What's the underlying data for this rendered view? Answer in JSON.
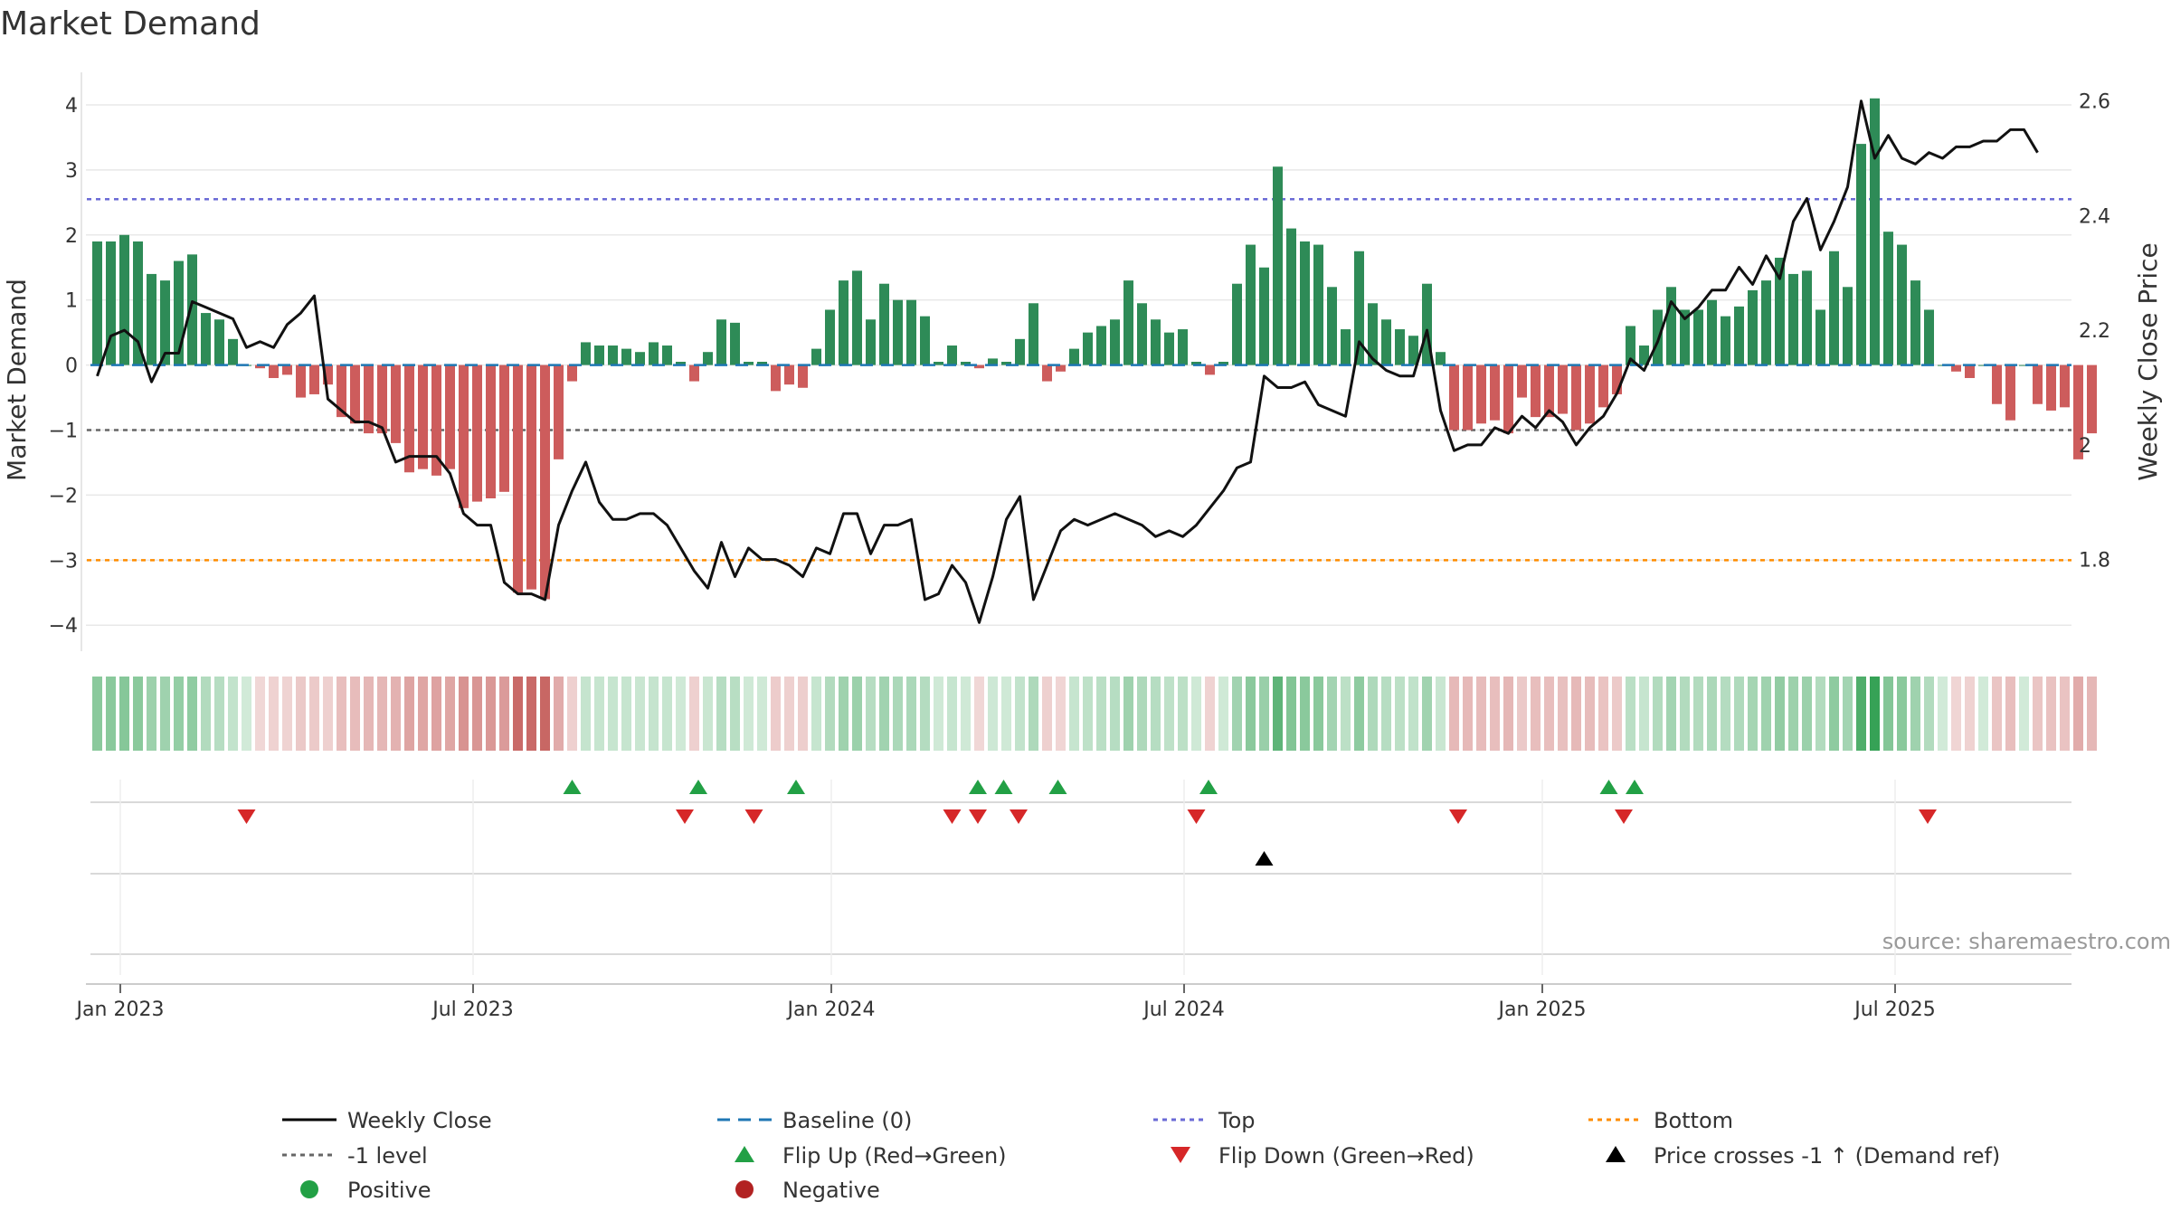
{
  "chart_data": {
    "type": "bar+line",
    "title": "Market Demand",
    "ylabel_left": "Market Demand",
    "ylabel_right": "Weekly Close Price",
    "ylim_left": [
      -4.4,
      4.5
    ],
    "ylim_right": [
      1.64,
      2.65
    ],
    "left_ticks": [
      4,
      3,
      2,
      1,
      0,
      -1,
      -2,
      -3,
      -4
    ],
    "right_ticks": [
      2.6,
      2.4,
      2.2,
      2,
      1.8
    ],
    "x_axis_labels": [
      "Jan 2023",
      "Jul 2023",
      "Jan 2024",
      "Jul 2024",
      "Jan 2025",
      "Jul 2025"
    ],
    "x_axis_label_weeks": [
      2.2,
      28.2,
      54.6,
      80.6,
      107.0,
      133.0
    ],
    "num_weeks": 146,
    "reference_lines": {
      "top": 2.55,
      "bottom": -3.0,
      "minus_one": -1.0,
      "baseline": 0
    },
    "demand": [
      1.9,
      1.9,
      2.0,
      1.9,
      1.4,
      1.3,
      1.6,
      1.7,
      0.8,
      0.7,
      0.4,
      0.0,
      -0.05,
      -0.2,
      -0.15,
      -0.5,
      -0.45,
      -0.3,
      -0.8,
      -0.9,
      -1.05,
      -1.05,
      -1.2,
      -1.65,
      -1.6,
      -1.7,
      -1.6,
      -2.2,
      -2.1,
      -2.05,
      -1.95,
      -3.5,
      -3.45,
      -3.6,
      -1.45,
      -0.25,
      0.35,
      0.3,
      0.3,
      0.25,
      0.2,
      0.35,
      0.3,
      0.05,
      -0.25,
      0.2,
      0.7,
      0.65,
      0.05,
      0.05,
      -0.4,
      -0.3,
      -0.35,
      0.25,
      0.85,
      1.3,
      1.45,
      0.7,
      1.25,
      1.0,
      1.0,
      0.75,
      0.05,
      0.3,
      0.05,
      -0.05,
      0.1,
      0.05,
      0.4,
      0.95,
      -0.25,
      -0.1,
      0.25,
      0.5,
      0.6,
      0.7,
      1.3,
      0.95,
      0.7,
      0.5,
      0.55,
      0.05,
      -0.15,
      0.05,
      1.25,
      1.85,
      1.5,
      3.05,
      2.1,
      1.9,
      1.85,
      1.2,
      0.55,
      1.75,
      0.95,
      0.7,
      0.55,
      0.45,
      1.25,
      0.2,
      -1.0,
      -1.0,
      -0.9,
      -0.85,
      -1.05,
      -0.5,
      -0.8,
      -0.8,
      -0.75,
      -1.0,
      -0.9,
      -0.65,
      -0.45,
      0.6,
      0.3,
      0.85,
      1.2,
      0.85,
      0.85,
      1.0,
      0.75,
      0.9,
      1.15,
      1.3,
      1.65,
      1.4,
      1.45,
      0.85,
      1.75,
      1.2,
      3.4,
      4.1,
      2.05,
      1.85,
      1.3,
      0.85,
      0.0,
      -0.1,
      -0.2,
      0.0,
      -0.6,
      -0.85,
      0.0,
      -0.6,
      -0.7,
      -0.65,
      -1.45,
      -1.05
    ],
    "weekly_close": [
      2.12,
      2.19,
      2.2,
      2.18,
      2.11,
      2.16,
      2.16,
      2.25,
      2.24,
      2.23,
      2.22,
      2.17,
      2.18,
      2.17,
      2.21,
      2.23,
      2.26,
      2.08,
      2.06,
      2.04,
      2.04,
      2.03,
      1.97,
      1.98,
      1.98,
      1.98,
      1.95,
      1.88,
      1.86,
      1.86,
      1.76,
      1.74,
      1.74,
      1.73,
      1.86,
      1.92,
      1.97,
      1.9,
      1.87,
      1.87,
      1.88,
      1.88,
      1.86,
      1.82,
      1.78,
      1.75,
      1.83,
      1.77,
      1.82,
      1.8,
      1.8,
      1.79,
      1.77,
      1.82,
      1.81,
      1.88,
      1.88,
      1.81,
      1.86,
      1.86,
      1.87,
      1.73,
      1.74,
      1.79,
      1.76,
      1.69,
      1.77,
      1.87,
      1.91,
      1.73,
      1.79,
      1.85,
      1.87,
      1.86,
      1.87,
      1.88,
      1.87,
      1.86,
      1.84,
      1.85,
      1.84,
      1.86,
      1.89,
      1.92,
      1.96,
      1.97,
      2.12,
      2.1,
      2.1,
      2.11,
      2.07,
      2.06,
      2.05,
      2.18,
      2.15,
      2.13,
      2.12,
      2.12,
      2.2,
      2.06,
      1.99,
      2.0,
      2.0,
      2.03,
      2.02,
      2.05,
      2.03,
      2.06,
      2.04,
      2.0,
      2.03,
      2.05,
      2.09,
      2.15,
      2.13,
      2.18,
      2.25,
      2.22,
      2.24,
      2.27,
      2.27,
      2.31,
      2.28,
      2.33,
      2.29,
      2.39,
      2.43,
      2.34,
      2.39,
      2.45,
      2.6,
      2.5,
      2.54,
      2.5,
      2.49,
      2.51,
      2.5,
      2.52,
      2.52,
      2.53,
      2.53,
      2.55,
      2.55,
      2.51
    ],
    "flip_up_weeks": [
      35.5,
      44.8,
      52,
      65.4,
      67.3,
      71.3,
      82.4,
      111.9,
      113.8
    ],
    "flip_down_weeks": [
      11.5,
      43.8,
      48.9,
      63.5,
      65.4,
      68.4,
      81.5,
      100.8,
      113,
      135.4
    ],
    "cross_weeks": [
      86.5
    ],
    "legend": [
      {
        "label": "Weekly Close",
        "kind": "line",
        "color": "#000000"
      },
      {
        "label": "Baseline (0)",
        "kind": "dash",
        "color": "#1f77b4"
      },
      {
        "label": "Top",
        "kind": "dot",
        "color": "#6a6ad6"
      },
      {
        "label": "Bottom",
        "kind": "dot",
        "color": "#ff8c00"
      },
      {
        "label": "-1 level",
        "kind": "dot",
        "color": "#666666"
      },
      {
        "label": "Flip Up (Red→Green)",
        "kind": "triup",
        "color": "#22a045"
      },
      {
        "label": "Flip Down (Green→Red)",
        "kind": "tridown",
        "color": "#d62728"
      },
      {
        "label": "Price crosses -1 ↑ (Demand ref)",
        "kind": "triup",
        "color": "#000000"
      },
      {
        "label": "Positive",
        "kind": "circle",
        "color": "#22a045"
      },
      {
        "label": "Negative",
        "kind": "circle",
        "color": "#b22222"
      }
    ],
    "source": "source: sharemaestro.com"
  },
  "colors": {
    "positive": "#2e8b57",
    "negative": "#cd5c5c",
    "strip_positive": "#2e9e4f",
    "strip_negative": "#c0504d",
    "flip_up": "#22a045",
    "flip_down": "#d62728",
    "cross": "#000000",
    "grid": "#e8e8e8",
    "line": "#111111"
  }
}
